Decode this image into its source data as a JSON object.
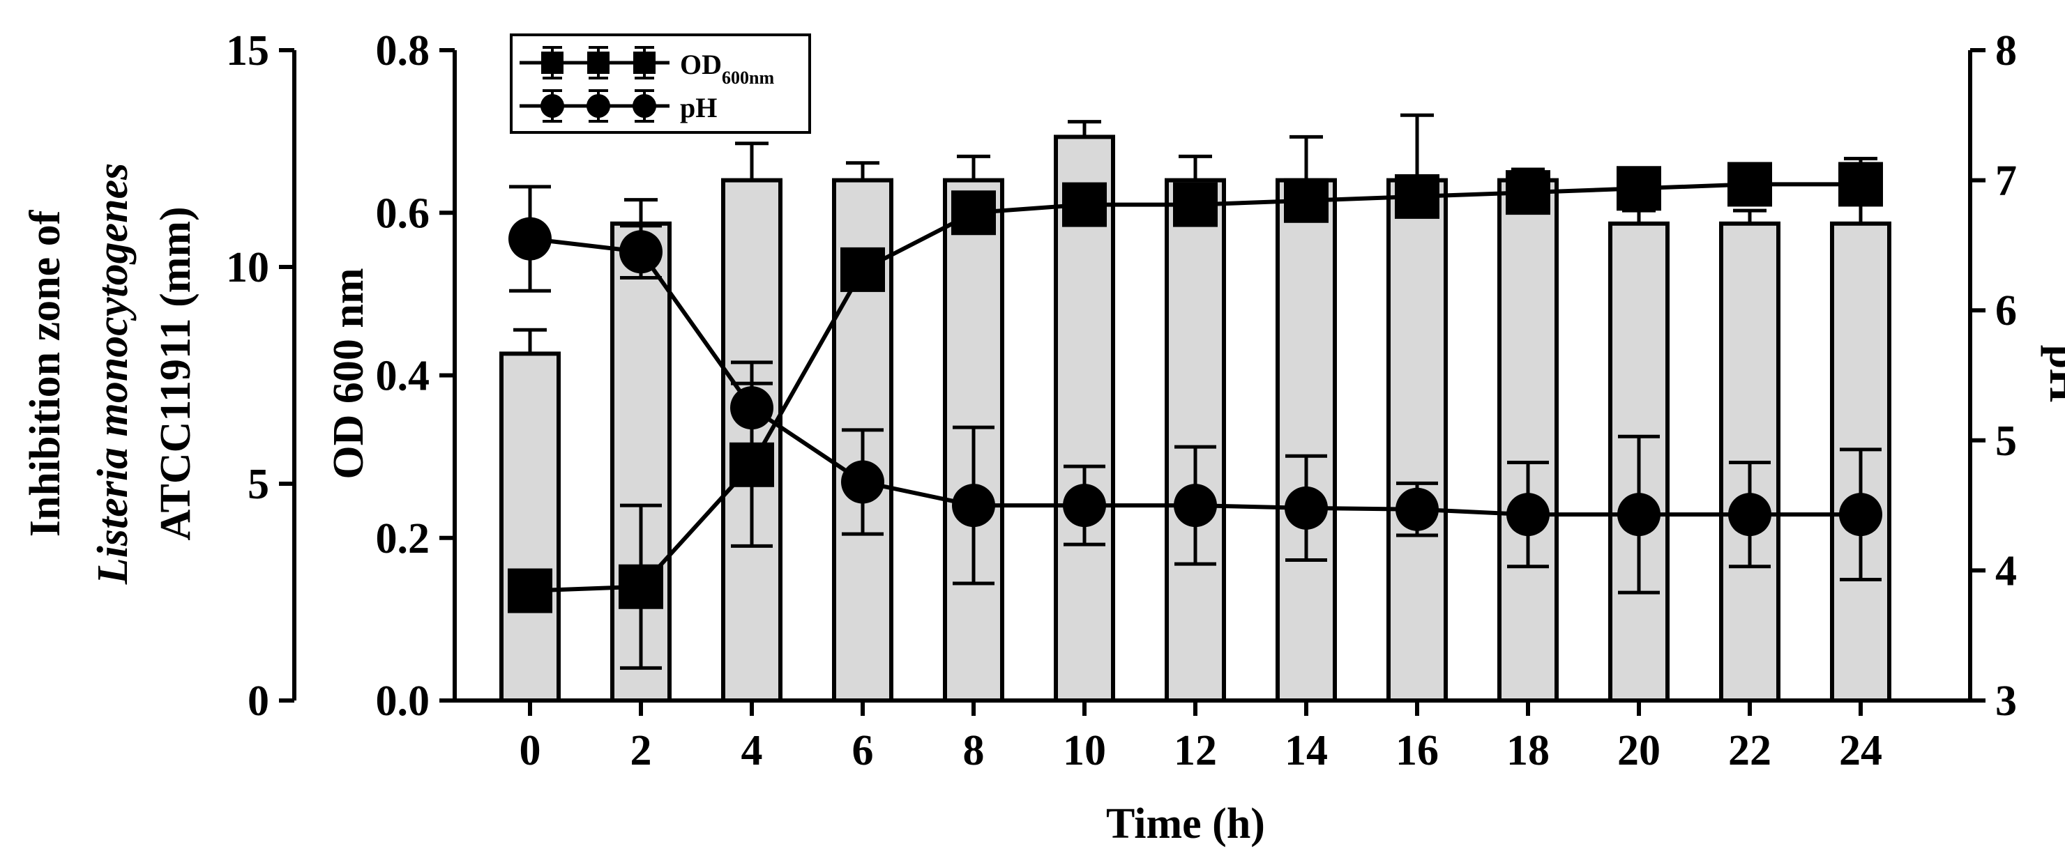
{
  "chart_data": {
    "type": "bar+line",
    "x": [
      0,
      2,
      4,
      6,
      8,
      10,
      12,
      14,
      16,
      18,
      20,
      22,
      24
    ],
    "x_tick_labels": [
      "0",
      "2",
      "4",
      "6",
      "8",
      "10",
      "12",
      "14",
      "16",
      "18",
      "20",
      "22",
      "24"
    ],
    "xlabel": "Time (h)",
    "inhibition_axis": {
      "label_line1": "Inhibition zone of",
      "label_line2": "Listeria monocytogenes",
      "label_line3": "ATCC11911 (mm)",
      "range": [
        0,
        15
      ],
      "ticks": [
        "0",
        "5",
        "10",
        "15"
      ]
    },
    "od_axis": {
      "label": "OD 600 nm",
      "range": [
        0,
        0.8
      ],
      "ticks": [
        "0.0",
        "0.2",
        "0.4",
        "0.6",
        "0.8"
      ]
    },
    "ph_axis": {
      "label": "pH",
      "range": [
        3,
        8
      ],
      "ticks": [
        "3",
        "4",
        "5",
        "6",
        "7",
        "8"
      ]
    },
    "bars": {
      "name": "Inhibition zone",
      "color": "#d9d9d9",
      "values": [
        8.0,
        11.0,
        12.0,
        12.0,
        12.0,
        13.0,
        12.0,
        12.0,
        12.0,
        12.0,
        11.0,
        11.0,
        11.0
      ],
      "errors": [
        0.55,
        0.55,
        0.85,
        0.4,
        0.55,
        0.35,
        0.55,
        1.0,
        1.5,
        0.25,
        0.3,
        0.3,
        1.5
      ]
    },
    "series": [
      {
        "name": "OD",
        "legend_main": "OD",
        "legend_sub": "600nm",
        "marker": "square",
        "values": [
          0.135,
          0.14,
          0.29,
          0.53,
          0.6,
          0.61,
          0.61,
          0.615,
          0.62,
          0.625,
          0.63,
          0.635,
          0.635
        ],
        "errors": [
          0.025,
          0.1,
          0.1,
          0.025,
          0.015,
          0.01,
          0.015,
          0.01,
          0.005,
          0.005,
          0.005,
          0.005,
          0.005
        ]
      },
      {
        "name": "pH",
        "legend_main": "pH",
        "legend_sub": "",
        "marker": "circle",
        "values": [
          6.55,
          6.45,
          5.25,
          4.68,
          4.5,
          4.5,
          4.5,
          4.48,
          4.47,
          4.43,
          4.43,
          4.43,
          4.43
        ],
        "errors": [
          0.4,
          0.2,
          0.35,
          0.4,
          0.6,
          0.3,
          0.45,
          0.4,
          0.2,
          0.4,
          0.6,
          0.4,
          0.5
        ]
      }
    ]
  }
}
